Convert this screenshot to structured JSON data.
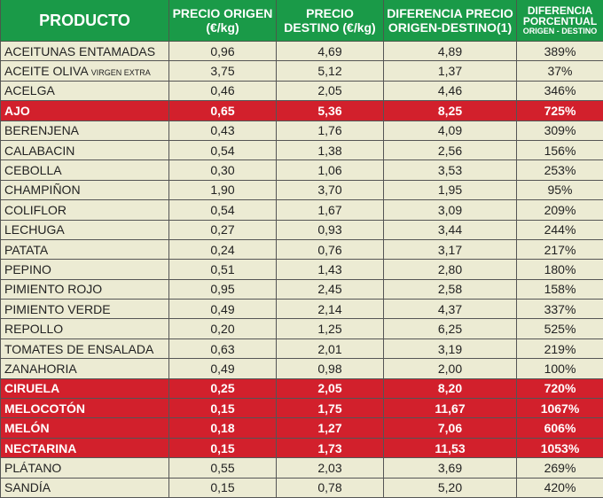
{
  "headers": {
    "product": "PRODUCTO",
    "origin": "PRECIO ORIGEN (€/kg)",
    "dest": "PRECIO DESTINO (€/kg)",
    "diff": "DIFERENCIA PRECIO ORIGEN-DESTINO(1)",
    "pct": "DIFERENCIA PORCENTUAL",
    "pct_sub": "ORIGEN - DESTINO"
  },
  "colors": {
    "header": "#1a9a48",
    "highlight": "#d2202c",
    "row": "#ecebd3"
  },
  "rows": [
    {
      "name": "ACEITUNAS ENTAMADAS",
      "sub": "",
      "origin": "0,96",
      "dest": "4,69",
      "diff": "4,89",
      "pct": "389%",
      "hl": false
    },
    {
      "name": "ACEITE OLIVA",
      "sub": "VIRGEN EXTRA",
      "origin": "3,75",
      "dest": "5,12",
      "diff": "1,37",
      "pct": "37%",
      "hl": false
    },
    {
      "name": "ACELGA",
      "sub": "",
      "origin": "0,46",
      "dest": "2,05",
      "diff": "4,46",
      "pct": "346%",
      "hl": false
    },
    {
      "name": "AJO",
      "sub": "",
      "origin": "0,65",
      "dest": "5,36",
      "diff": "8,25",
      "pct": "725%",
      "hl": true
    },
    {
      "name": "BERENJENA",
      "sub": "",
      "origin": "0,43",
      "dest": "1,76",
      "diff": "4,09",
      "pct": "309%",
      "hl": false
    },
    {
      "name": "CALABACIN",
      "sub": "",
      "origin": "0,54",
      "dest": "1,38",
      "diff": "2,56",
      "pct": "156%",
      "hl": false
    },
    {
      "name": "CEBOLLA",
      "sub": "",
      "origin": "0,30",
      "dest": "1,06",
      "diff": "3,53",
      "pct": "253%",
      "hl": false
    },
    {
      "name": "CHAMPIÑON",
      "sub": "",
      "origin": "1,90",
      "dest": "3,70",
      "diff": "1,95",
      "pct": "95%",
      "hl": false
    },
    {
      "name": "COLIFLOR",
      "sub": "",
      "origin": "0,54",
      "dest": "1,67",
      "diff": "3,09",
      "pct": "209%",
      "hl": false
    },
    {
      "name": "LECHUGA",
      "sub": "",
      "origin": "0,27",
      "dest": "0,93",
      "diff": "3,44",
      "pct": "244%",
      "hl": false
    },
    {
      "name": "PATATA",
      "sub": "",
      "origin": "0,24",
      "dest": "0,76",
      "diff": "3,17",
      "pct": "217%",
      "hl": false
    },
    {
      "name": "PEPINO",
      "sub": "",
      "origin": "0,51",
      "dest": "1,43",
      "diff": "2,80",
      "pct": "180%",
      "hl": false
    },
    {
      "name": "PIMIENTO ROJO",
      "sub": "",
      "origin": "0,95",
      "dest": "2,45",
      "diff": "2,58",
      "pct": "158%",
      "hl": false
    },
    {
      "name": "PIMIENTO VERDE",
      "sub": "",
      "origin": "0,49",
      "dest": "2,14",
      "diff": "4,37",
      "pct": "337%",
      "hl": false
    },
    {
      "name": "REPOLLO",
      "sub": "",
      "origin": "0,20",
      "dest": "1,25",
      "diff": "6,25",
      "pct": "525%",
      "hl": false
    },
    {
      "name": "TOMATES DE ENSALADA",
      "sub": "",
      "origin": "0,63",
      "dest": "2,01",
      "diff": "3,19",
      "pct": "219%",
      "hl": false
    },
    {
      "name": "ZANAHORIA",
      "sub": "",
      "origin": "0,49",
      "dest": "0,98",
      "diff": "2,00",
      "pct": "100%",
      "hl": false
    },
    {
      "name": "CIRUELA",
      "sub": "",
      "origin": "0,25",
      "dest": "2,05",
      "diff": "8,20",
      "pct": "720%",
      "hl": true
    },
    {
      "name": "MELOCOTÓN",
      "sub": "",
      "origin": "0,15",
      "dest": "1,75",
      "diff": "11,67",
      "pct": "1067%",
      "hl": true
    },
    {
      "name": "MELÓN",
      "sub": "",
      "origin": "0,18",
      "dest": "1,27",
      "diff": "7,06",
      "pct": "606%",
      "hl": true
    },
    {
      "name": "NECTARINA",
      "sub": "",
      "origin": "0,15",
      "dest": "1,73",
      "diff": "11,53",
      "pct": "1053%",
      "hl": true
    },
    {
      "name": "PLÁTANO",
      "sub": "",
      "origin": "0,55",
      "dest": "2,03",
      "diff": "3,69",
      "pct": "269%",
      "hl": false
    },
    {
      "name": "SANDÍA",
      "sub": "",
      "origin": "0,15",
      "dest": "0,78",
      "diff": "5,20",
      "pct": "420%",
      "hl": false
    }
  ]
}
